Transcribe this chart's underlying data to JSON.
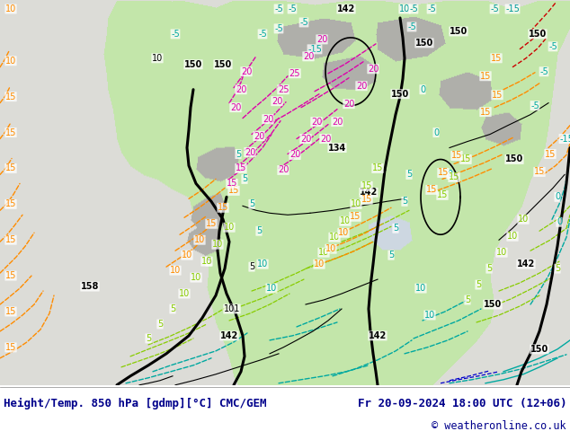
{
  "title_left": "Height/Temp. 850 hPa [gdmp][°C] CMC/GEM",
  "title_right": "Fr 20-09-2024 18:00 UTC (12+06)",
  "copyright": "© weatheronline.co.uk",
  "bg_color": "#ffffff",
  "ocean_color_rgb": [
    220,
    220,
    215
  ],
  "land_color_rgb": [
    195,
    230,
    170
  ],
  "gray_color_rgb": [
    175,
    175,
    170
  ],
  "water_color_rgb": [
    200,
    215,
    220
  ],
  "figsize": [
    6.34,
    4.9
  ],
  "dpi": 100,
  "footer_fontsize": 9.0,
  "text_color": "#00008b"
}
